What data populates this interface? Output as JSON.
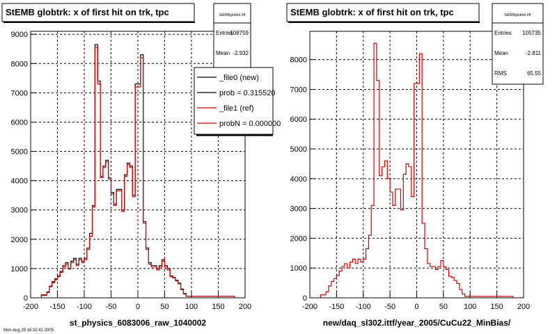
{
  "chart_data": [
    {
      "type": "line",
      "title": "StEMB globtrk: x of first hit on trk, tpc",
      "xlabel": "st_physics_6083006_raw_1040002",
      "ylabel": "",
      "xlim": [
        -200,
        200
      ],
      "ylim": [
        0,
        9100
      ],
      "x_ticks": [
        "-200",
        "-150",
        "-100",
        "-50",
        "0",
        "50",
        "100",
        "150",
        "200"
      ],
      "y_ticks": [
        "0",
        "1000",
        "2000",
        "3000",
        "4000",
        "5000",
        "6000",
        "7000",
        "8000",
        "9000"
      ],
      "grid": true,
      "stats": {
        "name": "StEMBglobtrk.Xff",
        "rows": [
          {
            "label": "Entries",
            "value": "108759"
          },
          {
            "label": "Mean",
            "value": "-2.932"
          }
        ]
      },
      "legend": {
        "position": "top-right",
        "entries": [
          {
            "label": "_file0 (new)",
            "color": "#000000"
          },
          {
            "label": "prob = 0.315520",
            "color": "#000000"
          },
          {
            "label": "_file1 (ref)",
            "color": "#d00000"
          },
          {
            "label": "probN = 0.000000",
            "color": "#d00000"
          }
        ]
      },
      "bin_edges": [
        -180,
        -170,
        -165,
        -160,
        -155,
        -150,
        -145,
        -140,
        -135,
        -130,
        -125,
        -120,
        -115,
        -110,
        -105,
        -100,
        -95,
        -90,
        -85,
        -80,
        -75,
        -70,
        -65,
        -60,
        -55,
        -50,
        -45,
        -40,
        -35,
        -30,
        -25,
        -20,
        -15,
        -10,
        -5,
        5,
        10,
        15,
        20,
        25,
        30,
        35,
        40,
        45,
        50,
        55,
        60,
        65,
        70,
        75,
        80,
        85,
        90,
        95,
        100,
        105,
        110,
        115,
        120,
        125,
        130,
        135,
        140,
        145,
        150,
        155,
        160,
        165,
        170,
        175,
        180
      ],
      "series": [
        {
          "name": "_file0 (new)",
          "color": "#000000",
          "values": [
            100,
            200,
            400,
            550,
            650,
            750,
            900,
            1100,
            1200,
            1000,
            1250,
            1350,
            1150,
            1350,
            1250,
            1350,
            1700,
            2200,
            3150,
            8650,
            7400,
            4150,
            4500,
            4700,
            4100,
            3600,
            3200,
            3700,
            3700,
            3000,
            4200,
            4600,
            4500,
            3500,
            7300,
            8300,
            2600,
            1700,
            1200,
            1100,
            1100,
            1000,
            1100,
            1300,
            1100,
            1000,
            750,
            700,
            600,
            500,
            300,
            150,
            50,
            50,
            50,
            50,
            50,
            50,
            50,
            50,
            50,
            50,
            50,
            50,
            50,
            50,
            50,
            50,
            50,
            50
          ]
        },
        {
          "name": "_file1 (ref)",
          "color": "#d00000",
          "values": [
            80,
            180,
            380,
            520,
            620,
            720,
            870,
            1050,
            1150,
            980,
            1200,
            1300,
            1100,
            1300,
            1200,
            1300,
            1650,
            2100,
            3100,
            8550,
            7300,
            4100,
            4450,
            4650,
            4050,
            3550,
            3150,
            3650,
            3650,
            2950,
            4150,
            4550,
            4450,
            3450,
            7200,
            8200,
            2550,
            1650,
            1150,
            1050,
            1050,
            950,
            1050,
            1250,
            1050,
            950,
            720,
            680,
            580,
            480,
            280,
            130,
            50,
            50,
            50,
            50,
            50,
            50,
            50,
            50,
            50,
            50,
            50,
            50,
            50,
            50,
            50,
            50,
            50,
            50
          ]
        }
      ]
    },
    {
      "type": "line",
      "title": "StEMB globtrk: x of first hit on trk, tpc",
      "xlabel": "new/daq_sl302.ittf/year_2005/CuCu22_MinBias/",
      "ylabel": "",
      "xlim": [
        -200,
        200
      ],
      "ylim": [
        0,
        8950
      ],
      "x_ticks": [
        "-200",
        "-150",
        "-100",
        "-50",
        "0",
        "50",
        "100",
        "150",
        "200"
      ],
      "y_ticks": [
        "0",
        "1000",
        "2000",
        "3000",
        "4000",
        "5000",
        "6000",
        "7000",
        "8000"
      ],
      "grid": true,
      "stats": {
        "name": "StEMBglobtrk.Xff",
        "rows": [
          {
            "label": "Entries",
            "value": "105735"
          },
          {
            "label": "Mean",
            "value": "-2.811"
          },
          {
            "label": "RMS",
            "value": "65.55"
          }
        ]
      },
      "bin_edges": [
        -180,
        -170,
        -165,
        -160,
        -155,
        -150,
        -145,
        -140,
        -135,
        -130,
        -125,
        -120,
        -115,
        -110,
        -105,
        -100,
        -95,
        -90,
        -85,
        -80,
        -75,
        -70,
        -65,
        -60,
        -55,
        -50,
        -45,
        -40,
        -35,
        -30,
        -25,
        -20,
        -15,
        -10,
        -5,
        5,
        10,
        15,
        20,
        25,
        30,
        35,
        40,
        45,
        50,
        55,
        60,
        65,
        70,
        75,
        80,
        85,
        90,
        95,
        100,
        105,
        110,
        115,
        120,
        125,
        130,
        135,
        140,
        145,
        150,
        155,
        160,
        165,
        170,
        175,
        180
      ],
      "series": [
        {
          "name": "new",
          "color": "#d00000",
          "values": [
            100,
            200,
            400,
            550,
            650,
            750,
            900,
            1050,
            1150,
            1000,
            1200,
            1300,
            1150,
            1300,
            1200,
            1300,
            1650,
            2100,
            3100,
            8550,
            7300,
            4100,
            4400,
            4600,
            4000,
            3550,
            3100,
            3650,
            3650,
            2950,
            4150,
            4500,
            4400,
            3400,
            7200,
            8200,
            2500,
            1650,
            1150,
            1050,
            1050,
            950,
            1050,
            1250,
            1050,
            950,
            720,
            680,
            580,
            480,
            280,
            130,
            50,
            50,
            50,
            50,
            50,
            50,
            50,
            50,
            50,
            50,
            50,
            50,
            50,
            50,
            50,
            50,
            50,
            50
          ]
        }
      ]
    }
  ],
  "footer_text": "Mon Aug 29 16:32:41 2005"
}
